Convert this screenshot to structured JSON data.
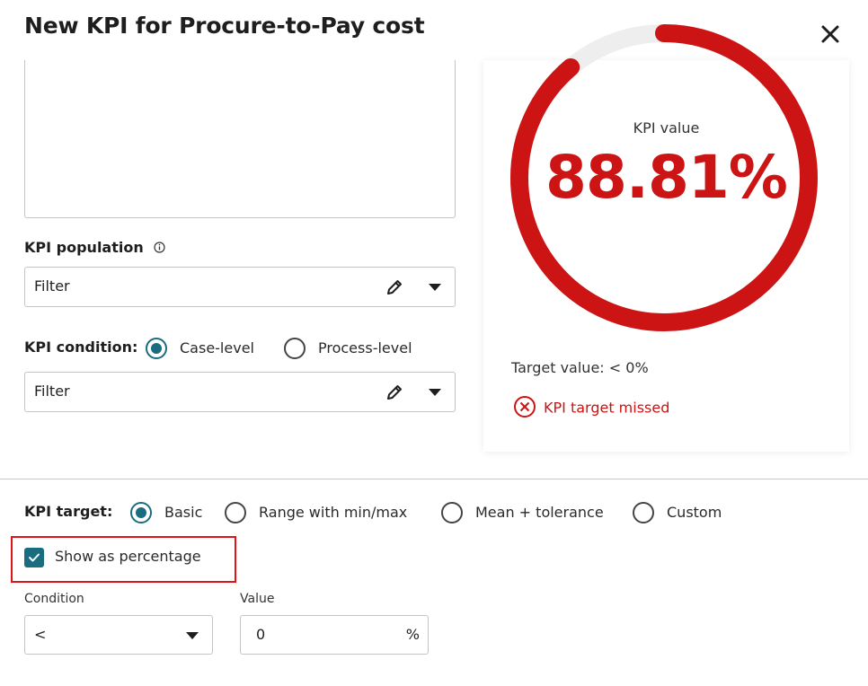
{
  "dialog": {
    "title": "New KPI for Procure-to-Pay cost"
  },
  "kpi_population": {
    "label": "KPI population",
    "filter_value": "Filter"
  },
  "kpi_condition": {
    "label": "KPI condition:",
    "options": [
      "Case-level",
      "Process-level"
    ],
    "selected": "Case-level",
    "filter_value": "Filter"
  },
  "kpi_card": {
    "label": "KPI value",
    "value": "88.81%",
    "fill_fraction": 0.8881,
    "target_text": "Target value: < 0%",
    "status": "KPI target missed",
    "accent_color": "#cc1414"
  },
  "kpi_target": {
    "label": "KPI target:",
    "options": [
      "Basic",
      "Range with min/max",
      "Mean + tolerance",
      "Custom"
    ],
    "selected": "Basic",
    "show_percentage_label": "Show as percentage",
    "show_percentage_checked": true,
    "condition_label": "Condition",
    "condition_value": "<",
    "value_label": "Value",
    "value": "0",
    "value_unit": "%"
  },
  "colors": {
    "primary": "#1a6c80",
    "error": "#cc1414"
  }
}
